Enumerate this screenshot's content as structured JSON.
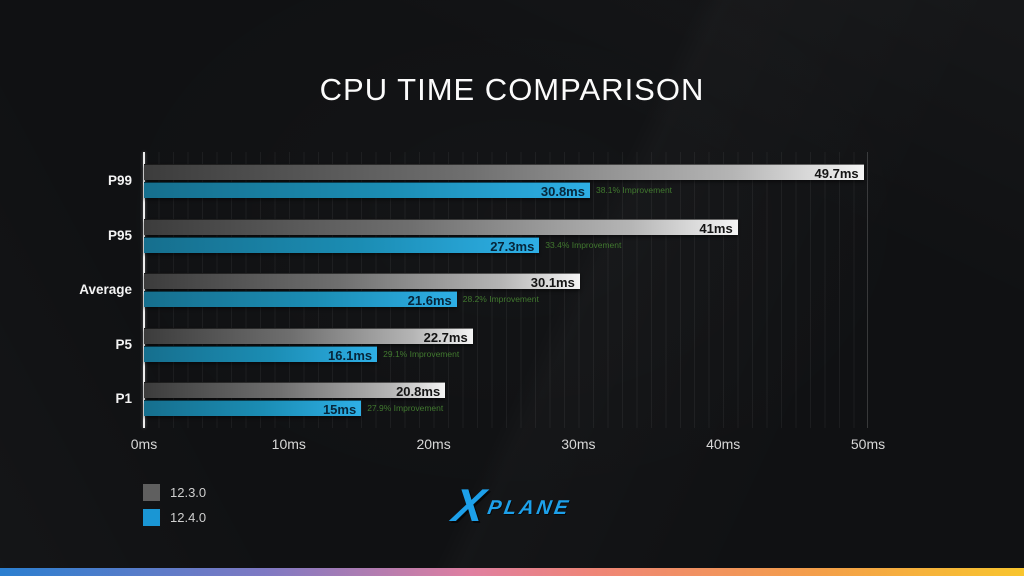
{
  "title": "CPU TIME COMPARISON",
  "chart_data": {
    "type": "bar",
    "orientation": "horizontal",
    "title": "CPU TIME COMPARISON",
    "categories": [
      "P99",
      "P95",
      "Average",
      "P5",
      "P1"
    ],
    "series": [
      {
        "name": "12.3.0",
        "color": "#5f5f5f",
        "values": [
          49.7,
          41,
          30.1,
          22.7,
          20.8
        ],
        "value_labels": [
          "49.7ms",
          "41ms",
          "30.1ms",
          "22.7ms",
          "20.8ms"
        ]
      },
      {
        "name": "12.4.0",
        "color": "#1a96d4",
        "values": [
          30.8,
          27.3,
          21.6,
          16.1,
          15
        ],
        "value_labels": [
          "30.8ms",
          "27.3ms",
          "21.6ms",
          "16.1ms",
          "15ms"
        ]
      }
    ],
    "improvement_labels": [
      "38.1% Improvement",
      "33.4% Improvement",
      "28.2% Improvement",
      "29.1% Improvement",
      "27.9% Improvement"
    ],
    "xlabel": "",
    "ylabel": "",
    "xlim": [
      0,
      50
    ],
    "x_ticks": [
      "0ms",
      "10ms",
      "20ms",
      "30ms",
      "40ms",
      "50ms"
    ],
    "grid": "vertical minor gridlines every 1ms",
    "legend_position": "bottom-left"
  },
  "legend": {
    "items": [
      {
        "label": "12.3.0",
        "color": "#5f5f5f"
      },
      {
        "label": "12.4.0",
        "color": "#1a96d4"
      }
    ]
  },
  "logo": {
    "x": "X",
    "rest": "PLANE",
    "color": "#1da0ea"
  },
  "colors": {
    "background": "#101113",
    "title_text": "#fbfbfb",
    "axis_line": "#ededed",
    "tick_text": "#d8d8d8",
    "category_text": "#f4f4f4",
    "improvement_text": "#41792f",
    "bar_gray_end": "#f4f4f4",
    "bar_blue_end": "#2eafe6",
    "bottom_bar_gradient": [
      "#2b7fd0",
      "#7f79c3",
      "#e07fa0",
      "#ef8577",
      "#f49f49",
      "#f8c52e"
    ]
  }
}
